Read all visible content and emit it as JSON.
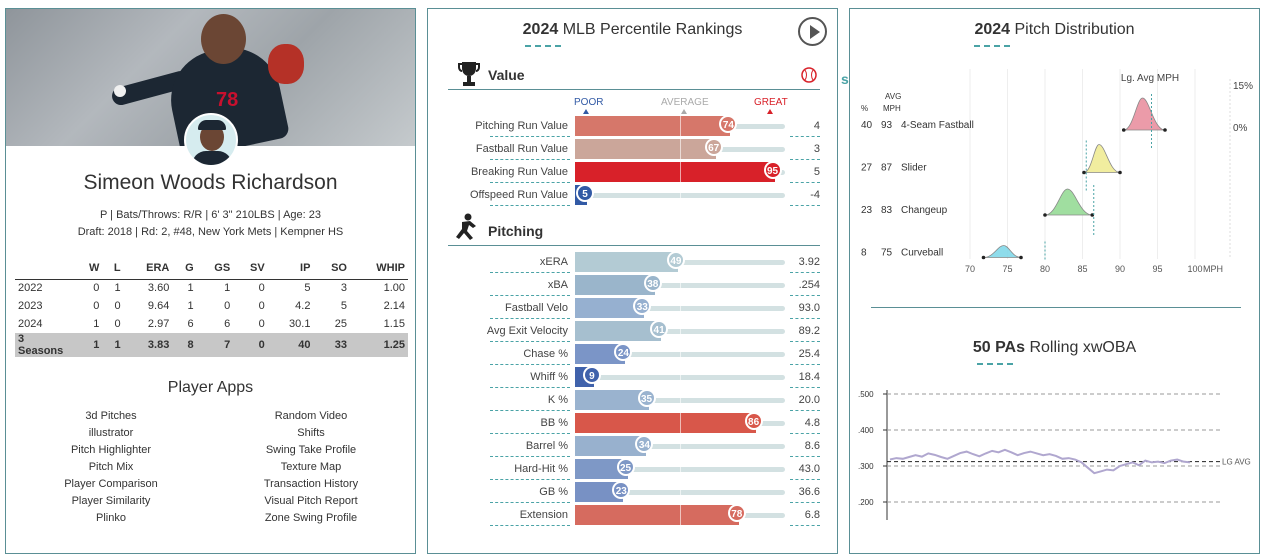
{
  "player": {
    "name": "Simeon Woods Richardson",
    "jersey_number": "78",
    "info_line1": "P | Bats/Throws: R/R | 6' 3\" 210LBS | Age: 23",
    "info_line2": "Draft: 2018 | Rd: 2, #48, New York Mets | Kempner HS"
  },
  "stats": {
    "headers": [
      "",
      "W",
      "L",
      "ERA",
      "G",
      "GS",
      "SV",
      "IP",
      "SO",
      "WHIP"
    ],
    "rows": [
      [
        "2022",
        "0",
        "1",
        "3.60",
        "1",
        "1",
        "0",
        "5",
        "3",
        "1.00"
      ],
      [
        "2023",
        "0",
        "0",
        "9.64",
        "1",
        "0",
        "0",
        "4.2",
        "5",
        "2.14"
      ],
      [
        "2024",
        "1",
        "0",
        "2.97",
        "6",
        "6",
        "0",
        "30.1",
        "25",
        "1.15"
      ]
    ],
    "total": [
      "3 Seasons",
      "1",
      "1",
      "3.83",
      "8",
      "7",
      "0",
      "40",
      "33",
      "1.25"
    ]
  },
  "apps": {
    "title": "Player Apps",
    "left": [
      "3d Pitches",
      "illustrator",
      "Pitch Highlighter",
      "Pitch Mix",
      "Player Comparison",
      "Player Similarity",
      "Plinko"
    ],
    "right": [
      "Random Video",
      "Shifts",
      "Swing Take Profile",
      "Texture Map",
      "Transaction History",
      "Visual Pitch Report",
      "Zone Swing Profile"
    ]
  },
  "percentile": {
    "title_year": "2024",
    "title_rest": " MLB Percentile Rankings",
    "value_section": "Value",
    "pitching_section": "Pitching",
    "savant": "savant",
    "scale": {
      "poor": "POOR",
      "average": "AVERAGE",
      "great": "GREAT"
    },
    "value_rows": [
      {
        "label": "Pitching Run Value",
        "pct": 74,
        "value": "4",
        "color": "#d6776a"
      },
      {
        "label": "Fastball Run Value",
        "pct": 67,
        "value": "3",
        "color": "#cba69a"
      },
      {
        "label": "Breaking Run Value",
        "pct": 95,
        "value": "5",
        "color": "#d82129"
      },
      {
        "label": "Offspeed Run Value",
        "pct": 5,
        "value": "-4",
        "color": "#325aa5"
      }
    ],
    "pitching_rows": [
      {
        "label": "xERA",
        "pct": 49,
        "value": "3.92",
        "color": "#b3cbd4"
      },
      {
        "label": "xBA",
        "pct": 38,
        "value": ".254",
        "color": "#9ab5cb"
      },
      {
        "label": "Fastball Velo",
        "pct": 33,
        "value": "93.0",
        "color": "#96b0d0"
      },
      {
        "label": "Avg Exit Velocity",
        "pct": 41,
        "value": "89.2",
        "color": "#a6bfcf"
      },
      {
        "label": "Chase %",
        "pct": 24,
        "value": "25.4",
        "color": "#7b95c7"
      },
      {
        "label": "Whiff %",
        "pct": 9,
        "value": "18.4",
        "color": "#4062ab"
      },
      {
        "label": "K %",
        "pct": 35,
        "value": "20.0",
        "color": "#9ab3cf"
      },
      {
        "label": "BB %",
        "pct": 86,
        "value": "4.8",
        "color": "#d8574a"
      },
      {
        "label": "Barrel %",
        "pct": 34,
        "value": "8.6",
        "color": "#98b1ce"
      },
      {
        "label": "Hard-Hit %",
        "pct": 25,
        "value": "43.0",
        "color": "#7e98c6"
      },
      {
        "label": "GB %",
        "pct": 23,
        "value": "36.6",
        "color": "#7891c4"
      },
      {
        "label": "Extension",
        "pct": 78,
        "value": "6.8",
        "color": "#d66b5f"
      }
    ]
  },
  "pitch_dist": {
    "title_year": "2024",
    "title_rest": " Pitch Distribution",
    "lg_avg_label": "Lg. Avg MPH",
    "pct_head": "%",
    "avg_head_1": "AVG",
    "avg_head_2": "MPH",
    "scale_top": "15%",
    "scale_bottom": "0%",
    "x_ticks": [
      "70",
      "75",
      "80",
      "85",
      "90",
      "95",
      "100"
    ],
    "x_unit": "MPH",
    "pitches": [
      {
        "usage": "40",
        "mph": "93",
        "name": "4-Seam Fastball",
        "color": "#e88a9a",
        "lg": 94.2,
        "min": 90.5,
        "max": 96.0,
        "peak": 93.0
      },
      {
        "usage": "27",
        "mph": "87",
        "name": "Slider",
        "color": "#eeea8e",
        "lg": 85.5,
        "min": 85.2,
        "max": 90.0,
        "peak": 87.2
      },
      {
        "usage": "23",
        "mph": "83",
        "name": "Changeup",
        "color": "#8fd88f",
        "lg": 86.5,
        "min": 80.0,
        "max": 86.3,
        "peak": 83.0
      },
      {
        "usage": "8",
        "mph": "75",
        "name": "Curveball",
        "color": "#7ad6e8",
        "lg": 80.0,
        "min": 71.8,
        "max": 76.8,
        "peak": 74.5
      }
    ]
  },
  "rolling": {
    "title_bold": "50 PAs",
    "title_rest": " Rolling xwOBA",
    "y_ticks": [
      ".500",
      ".400",
      ".300",
      ".200"
    ],
    "lg_label": "LG AVG",
    "lg_value": 0.312,
    "series": [
      0.318,
      0.322,
      0.32,
      0.325,
      0.33,
      0.326,
      0.335,
      0.331,
      0.325,
      0.32,
      0.328,
      0.336,
      0.34,
      0.333,
      0.327,
      0.335,
      0.342,
      0.338,
      0.345,
      0.338,
      0.33,
      0.336,
      0.34,
      0.335,
      0.33,
      0.333,
      0.328,
      0.32,
      0.322,
      0.318,
      0.31,
      0.295,
      0.28,
      0.285,
      0.29,
      0.288,
      0.3,
      0.305,
      0.31,
      0.302,
      0.315,
      0.31,
      0.312,
      0.308,
      0.315,
      0.318,
      0.312,
      0.31
    ]
  }
}
